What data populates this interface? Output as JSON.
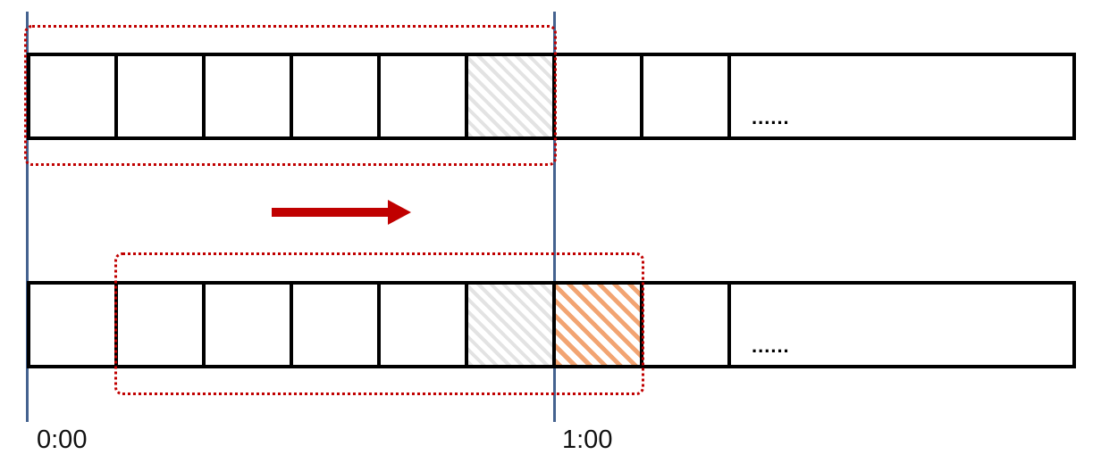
{
  "colors": {
    "window-red": "#C00000",
    "guide-blue": "#44628F",
    "hatch-gray": "#E3E3E3",
    "hatch-orange": "#F2A472",
    "bar-black": "#000000"
  },
  "timeline": {
    "start_label": "0:00",
    "end_label": "1:00"
  },
  "ellipsis": {
    "top": "......",
    "bottom": "......"
  },
  "bars": {
    "top": {
      "cells": [
        "plain",
        "plain",
        "plain",
        "plain",
        "plain",
        "hatch-gray",
        "plain",
        "plain",
        "long"
      ]
    },
    "bottom": {
      "cells": [
        "plain",
        "plain",
        "plain",
        "plain",
        "plain",
        "hatch-gray",
        "hatch-orange",
        "plain",
        "long"
      ]
    }
  }
}
